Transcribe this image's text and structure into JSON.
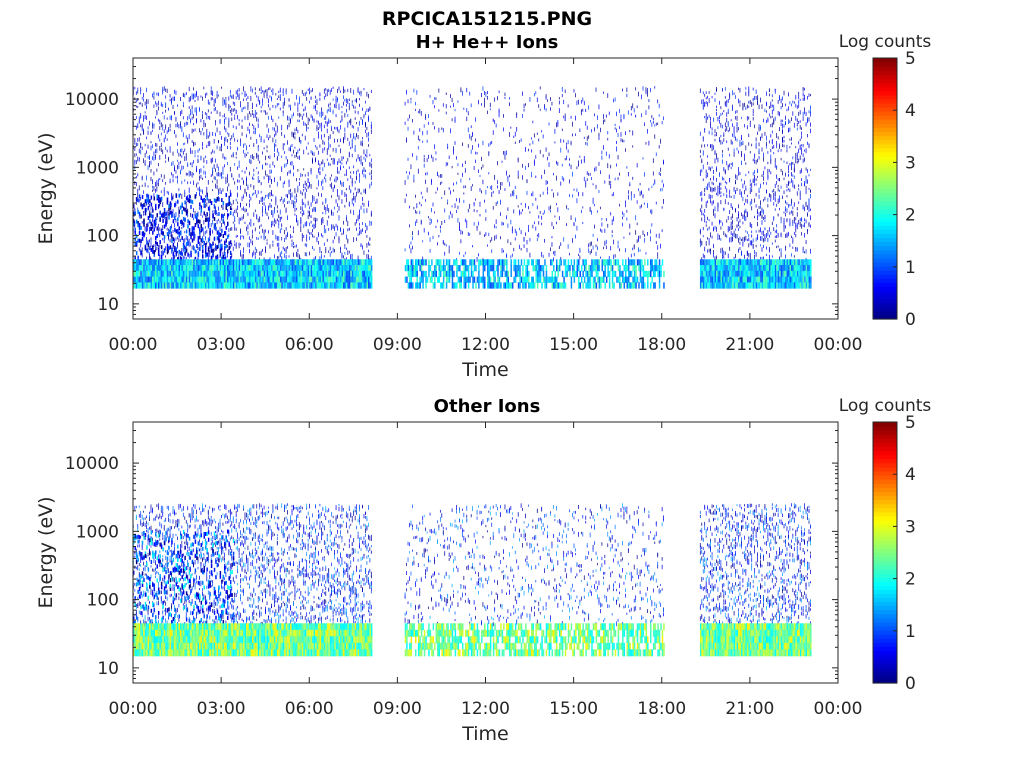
{
  "figure": {
    "title": "RPCICA151215.PNG"
  },
  "chart_data": [
    {
      "type": "heatmap",
      "title": "H+ He++ Ions",
      "xlabel": "Time",
      "ylabel": "Energy (eV)",
      "x_ticks": [
        "00:00",
        "03:00",
        "06:00",
        "09:00",
        "12:00",
        "15:00",
        "18:00",
        "21:00",
        "00:00"
      ],
      "x_range_hours": [
        0,
        24
      ],
      "y_scale": "log",
      "y_ticks": [
        "10",
        "100",
        "1000",
        "10000"
      ],
      "y_range_eV": [
        6,
        40000
      ],
      "colorbar": {
        "label": "Log counts",
        "ticks": [
          "0",
          "1",
          "2",
          "3",
          "4",
          "5"
        ],
        "range": [
          0,
          5
        ],
        "colormap": "jet"
      },
      "data_gaps_hours": [
        [
          8.1,
          9.2
        ],
        [
          18.1,
          19.3
        ],
        [
          23.1,
          24
        ]
      ],
      "coverage_hours": [
        [
          0,
          8.1
        ],
        [
          9.2,
          18.1
        ],
        [
          19.3,
          23.1
        ]
      ],
      "band": {
        "energy_eV": [
          17,
          45
        ],
        "typical_log_counts": [
          1.0,
          2.2
        ],
        "peak_log_counts": 2.3
      },
      "background": {
        "energy_eV": [
          45,
          15000
        ],
        "typical_log_counts": [
          0,
          1
        ],
        "dense_hours": [
          [
            0,
            8.1
          ],
          [
            19.3,
            23.1
          ]
        ],
        "sparse_hours": [
          [
            9.2,
            18.1
          ]
        ]
      },
      "low_energy_enhancement": {
        "hours": [
          0,
          3.3
        ],
        "energy_eV": [
          45,
          400
        ],
        "peak_log_counts": 1.3
      }
    },
    {
      "type": "heatmap",
      "title": "Other Ions",
      "xlabel": "Time",
      "ylabel": "Energy (eV)",
      "x_ticks": [
        "00:00",
        "03:00",
        "06:00",
        "09:00",
        "12:00",
        "15:00",
        "18:00",
        "21:00",
        "00:00"
      ],
      "x_range_hours": [
        0,
        24
      ],
      "y_scale": "log",
      "y_ticks": [
        "10",
        "100",
        "1000",
        "10000"
      ],
      "y_range_eV": [
        6,
        40000
      ],
      "colorbar": {
        "label": "Log counts",
        "ticks": [
          "0",
          "1",
          "2",
          "3",
          "4",
          "5"
        ],
        "range": [
          0,
          5
        ],
        "colormap": "jet"
      },
      "data_gaps_hours": [
        [
          8.1,
          9.2
        ],
        [
          18.1,
          19.3
        ],
        [
          23.1,
          24
        ]
      ],
      "coverage_hours": [
        [
          0,
          8.1
        ],
        [
          9.2,
          18.1
        ],
        [
          19.3,
          23.1
        ]
      ],
      "band": {
        "energy_eV": [
          15,
          45
        ],
        "typical_log_counts": [
          1.8,
          3.0
        ],
        "peak_log_counts": 3.2
      },
      "background": {
        "energy_eV": [
          45,
          2500
        ],
        "typical_log_counts": [
          0,
          1.5
        ],
        "dense_hours": [
          [
            0,
            8.1
          ],
          [
            19.3,
            23.1
          ]
        ],
        "sparse_hours": [
          [
            9.2,
            18.1
          ]
        ]
      },
      "low_energy_enhancement": {
        "hours": [
          0,
          3.4
        ],
        "energy_eV": [
          45,
          1000
        ],
        "peak_log_counts": 2.1
      }
    }
  ]
}
